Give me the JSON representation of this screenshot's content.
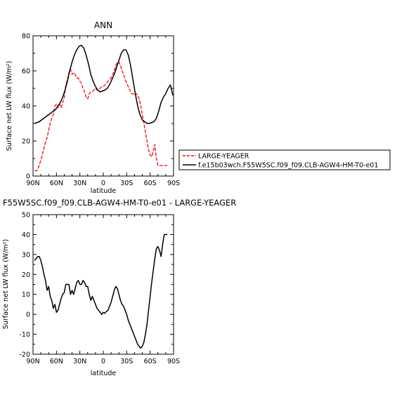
{
  "chart_data": [
    {
      "type": "line",
      "title": "ANN",
      "xlabel": "latitude",
      "ylabel": "Surface net LW flux (W/m²)",
      "xlim": [
        90,
        -90
      ],
      "ylim": [
        0,
        80
      ],
      "x_ticks": [
        "90N",
        "60N",
        "30N",
        "0",
        "30S",
        "60S",
        "90S"
      ],
      "x_tick_values": [
        90,
        60,
        30,
        0,
        -30,
        -60,
        -90
      ],
      "y_ticks": [
        0,
        20,
        40,
        60,
        80
      ],
      "legend": {
        "placement": "right"
      },
      "series": [
        {
          "name": "LARGE-YEAGER",
          "color": "#ff0000",
          "dash": "dashed",
          "x": [
            88,
            85,
            83,
            80,
            77,
            75,
            72,
            70,
            68,
            66,
            64,
            62,
            60,
            58,
            56,
            54,
            52,
            50,
            48,
            46,
            44,
            42,
            40,
            38,
            36,
            34,
            32,
            30,
            28,
            26,
            24,
            22,
            20,
            18,
            16,
            14,
            12,
            10,
            8,
            6,
            4,
            2,
            0,
            -2,
            -4,
            -6,
            -8,
            -10,
            -12,
            -14,
            -16,
            -18,
            -20,
            -22,
            -24,
            -26,
            -28,
            -30,
            -32,
            -34,
            -36,
            -38,
            -40,
            -42,
            -44,
            -46,
            -48,
            -50,
            -52,
            -54,
            -56,
            -58,
            -60,
            -62,
            -64,
            -66,
            -68,
            -70,
            -72,
            -74,
            -76,
            -78,
            -80,
            -82
          ],
          "y": [
            3,
            3,
            5,
            9,
            14,
            18,
            22,
            26,
            30,
            33,
            35,
            40,
            41,
            39,
            41,
            39,
            42,
            45,
            52,
            55,
            59,
            61,
            58,
            59,
            58,
            56,
            56,
            54,
            53,
            50,
            48,
            45,
            44,
            47,
            48,
            48,
            49,
            50,
            49,
            50,
            50,
            51,
            51,
            52,
            53,
            54,
            55,
            56,
            58,
            60,
            63,
            65,
            65,
            63,
            60,
            58,
            55,
            53,
            51,
            49,
            47,
            47,
            46,
            47,
            46,
            44,
            40,
            35,
            30,
            25,
            20,
            15,
            12,
            11,
            14,
            18,
            10,
            6,
            6,
            6,
            6,
            6,
            6,
            6
          ]
        },
        {
          "name": "f.e15b03wch.F55W5SC.f09_f09.CLB-AGW4-HM-T0-e01",
          "color": "#000000",
          "dash": "solid",
          "x": [
            88,
            85,
            82,
            79,
            76,
            73,
            70,
            67,
            64,
            61,
            58,
            55,
            52,
            49,
            46,
            43,
            40,
            37,
            34,
            31,
            28,
            25,
            22,
            19,
            16,
            13,
            10,
            7,
            4,
            1,
            -2,
            -5,
            -8,
            -11,
            -14,
            -17,
            -20,
            -23,
            -26,
            -29,
            -32,
            -35,
            -38,
            -41,
            -44,
            -47,
            -50,
            -53,
            -56,
            -59,
            -62,
            -65,
            -68,
            -71,
            -74,
            -77,
            -80,
            -83,
            -86,
            -89
          ],
          "y": [
            30,
            30.5,
            31,
            32,
            33,
            34,
            35,
            36,
            37,
            38,
            40,
            42,
            45,
            49,
            54,
            60,
            65,
            69,
            72,
            74,
            74.5,
            73,
            69,
            64,
            58,
            54,
            51,
            49,
            48,
            48.5,
            49,
            50,
            52,
            55,
            58,
            62,
            66,
            70,
            72,
            72,
            69,
            63,
            55,
            47,
            40,
            35,
            32,
            31,
            30,
            30,
            30.5,
            31,
            33,
            37,
            42,
            45,
            47,
            50,
            52,
            46
          ]
        }
      ]
    },
    {
      "type": "line",
      "title": "F55W5SC.f09_f09.CLB-AGW4-HM-T0-e01 - LARGE-YEAGER",
      "xlabel": "latitude",
      "ylabel": "Surface net LW flux (W/m²)",
      "xlim": [
        90,
        -90
      ],
      "ylim": [
        -20,
        50
      ],
      "x_ticks": [
        "90N",
        "60N",
        "30N",
        "0",
        "30S",
        "60S",
        "90S"
      ],
      "x_tick_values": [
        90,
        60,
        30,
        0,
        -30,
        -60,
        -90
      ],
      "y_ticks": [
        -20,
        -10,
        0,
        10,
        20,
        30,
        40,
        50
      ],
      "series": [
        {
          "color": "#000000",
          "dash": "solid",
          "x": [
            88,
            86,
            84,
            82,
            80,
            78,
            76,
            74,
            72,
            70,
            68,
            66,
            64,
            62,
            60,
            58,
            56,
            54,
            52,
            50,
            48,
            46,
            44,
            42,
            40,
            38,
            36,
            34,
            32,
            30,
            28,
            26,
            24,
            22,
            20,
            18,
            16,
            14,
            12,
            10,
            8,
            6,
            4,
            2,
            0,
            -2,
            -4,
            -6,
            -8,
            -10,
            -12,
            -14,
            -16,
            -18,
            -20,
            -22,
            -24,
            -26,
            -28,
            -30,
            -32,
            -34,
            -36,
            -38,
            -40,
            -42,
            -44,
            -46,
            -48,
            -50,
            -52,
            -54,
            -56,
            -58,
            -60,
            -62,
            -64,
            -66,
            -68,
            -70,
            -72,
            -74,
            -76,
            -78,
            -80,
            -82
          ],
          "y": [
            27,
            28,
            29,
            29,
            27,
            24,
            20,
            17,
            12,
            14,
            9,
            7,
            3,
            5,
            1,
            2,
            5,
            8,
            10,
            11,
            15,
            15,
            15,
            10,
            12,
            10,
            13,
            16,
            17,
            15,
            15,
            17,
            16,
            14,
            14,
            10,
            7,
            9,
            7,
            5,
            3,
            2,
            1,
            0,
            1,
            0.5,
            1.5,
            2,
            4,
            6,
            9,
            12,
            14,
            13,
            10,
            7,
            5,
            4,
            2,
            0,
            -3,
            -5,
            -7,
            -9,
            -11,
            -13,
            -15,
            -16,
            -17,
            -16,
            -14,
            -10,
            -5,
            2,
            9,
            16,
            22,
            28,
            33,
            34,
            32,
            29,
            35,
            40,
            40,
            40
          ]
        }
      ]
    }
  ]
}
